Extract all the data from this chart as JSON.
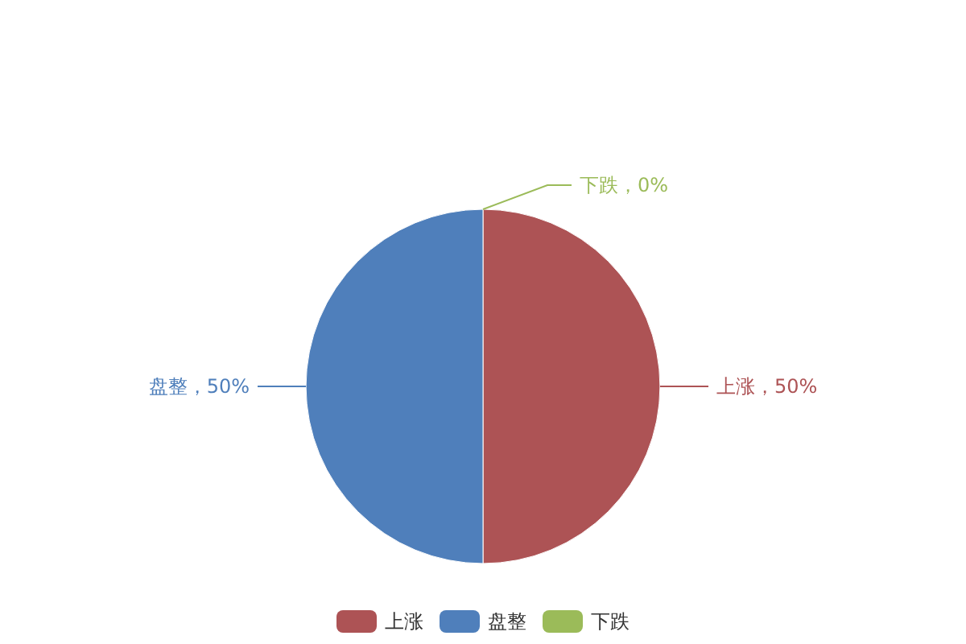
{
  "chart_data": {
    "type": "pie",
    "categories": [
      "上涨",
      "盘整",
      "下跌"
    ],
    "values": [
      50,
      50,
      0
    ],
    "colors": [
      "#ad5355",
      "#4f7fbb",
      "#9bbb59"
    ],
    "value_labels": [
      "上涨，50%",
      "盘整，50%",
      "下跌，0%"
    ],
    "legend": "bottom"
  }
}
